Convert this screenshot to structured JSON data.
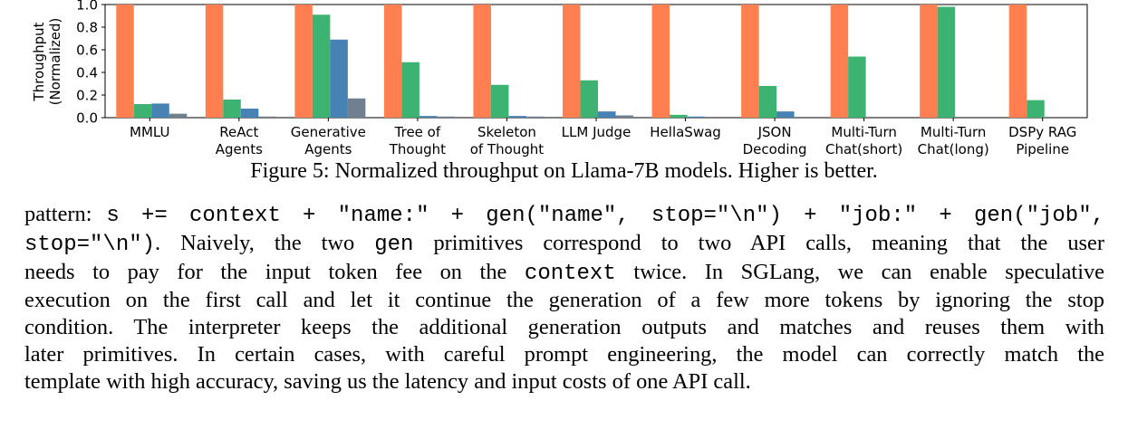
{
  "figure": {
    "caption": "Figure 5: Normalized throughput on Llama-7B models. Higher is better."
  },
  "chart_data": {
    "type": "bar",
    "ylabel": "Throughput\n(Normalized)",
    "ylim": [
      0,
      1.0
    ],
    "yticks": [
      "0.0",
      "0.2",
      "0.4",
      "0.6",
      "0.8",
      "1.0"
    ],
    "grid": false,
    "categories": [
      "MMLU",
      "ReAct\nAgents",
      "Generative\nAgents",
      "Tree of\nThought",
      "Skeleton\nof Thought",
      "LLM Judge",
      "HellaSwag",
      "JSON\nDecoding",
      "Multi-Turn\nChat(short)",
      "Multi-Turn\nChat(long)",
      "DSPy RAG\nPipeline"
    ],
    "series": [
      {
        "color": "#ff7f50",
        "values": [
          1.0,
          1.0,
          1.0,
          1.0,
          1.0,
          1.0,
          1.0,
          1.0,
          1.0,
          1.0,
          1.0
        ]
      },
      {
        "color": "#3cb371",
        "values": [
          0.12,
          0.16,
          0.91,
          0.49,
          0.29,
          0.33,
          0.025,
          0.28,
          0.54,
          0.98,
          0.155
        ]
      },
      {
        "color": "#4682b4",
        "values": [
          0.125,
          0.08,
          0.69,
          0.015,
          0.015,
          0.055,
          0.01,
          0.055,
          0,
          0,
          0
        ]
      },
      {
        "color": "#708090",
        "values": [
          0.035,
          0.01,
          0.17,
          0.01,
          0.01,
          0.02,
          0,
          0,
          0,
          0,
          0
        ]
      }
    ]
  },
  "body": {
    "l1_a": "pattern: ",
    "l1_code": "s += context + \"name:\" + gen(\"name\", stop=\"\\n\") + \"job:\" + gen(\"job\",",
    "l2_code": "stop=\"\\n\")",
    "l2_a": ". Naively, the two ",
    "l2_code2": "gen",
    "l2_b": " primitives correspond to two API calls, meaning that the user",
    "l3_a": "needs to pay for the input token fee on the ",
    "l3_code": "context",
    "l3_b": " twice. In SGLang, we can enable speculative",
    "l4": "execution on the first call and let it continue the generation of a few more tokens by ignoring the stop",
    "l5": "condition. The interpreter keeps the additional generation outputs and matches and reuses them with",
    "l6": "later primitives. In certain cases, with careful prompt engineering, the model can correctly match the",
    "l7": "template with high accuracy, saving us the latency and input costs of one API call."
  }
}
